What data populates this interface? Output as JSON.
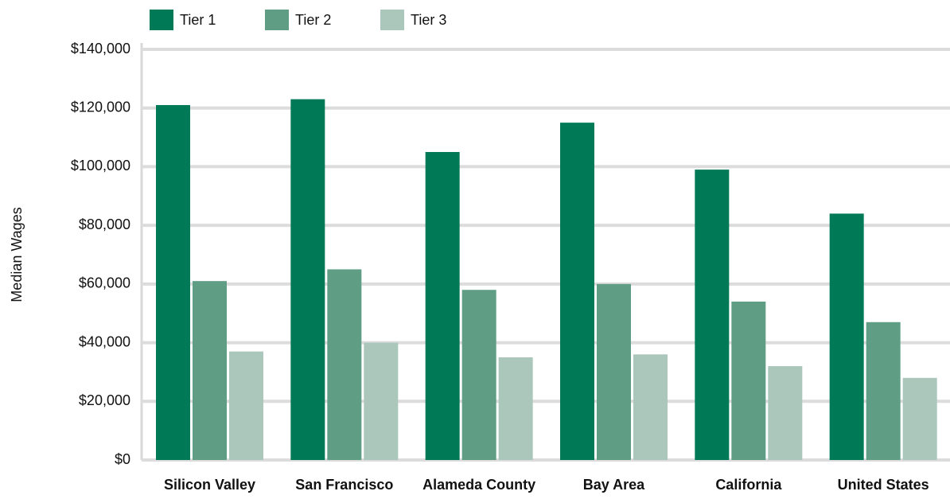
{
  "chart_data": {
    "type": "bar",
    "y_label": "Median Wages",
    "categories": [
      "Silicon Valley",
      "San Francisco",
      "Alameda County",
      "Bay Area",
      "California",
      "United States"
    ],
    "series": [
      {
        "name": "Tier 1",
        "color": "#007a56",
        "values": [
          121000,
          123000,
          105000,
          115000,
          99000,
          84000
        ]
      },
      {
        "name": "Tier 2",
        "color": "#5f9e85",
        "values": [
          61000,
          65000,
          58000,
          60000,
          54000,
          47000
        ]
      },
      {
        "name": "Tier 3",
        "color": "#abc7bb",
        "values": [
          37000,
          40000,
          35000,
          36000,
          32000,
          28000
        ]
      }
    ],
    "ylim": [
      0,
      140000
    ],
    "yticks": [
      {
        "value": 0,
        "label": "$0"
      },
      {
        "value": 20000,
        "label": "$20,000"
      },
      {
        "value": 40000,
        "label": "$40,000"
      },
      {
        "value": 60000,
        "label": "$60,000"
      },
      {
        "value": 80000,
        "label": "$80,000"
      },
      {
        "value": 100000,
        "label": "$100,000"
      },
      {
        "value": 120000,
        "label": "$120,000"
      },
      {
        "value": 140000,
        "label": "$140,000"
      }
    ],
    "grid": true,
    "legend": "top"
  }
}
